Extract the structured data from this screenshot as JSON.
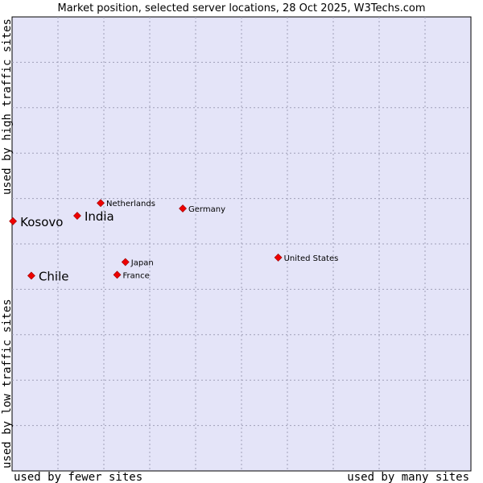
{
  "chart_data": {
    "type": "scatter",
    "title": "Market position, selected server locations, 28 Oct 2025, W3Techs.com",
    "xlabel_left": "used by fewer sites",
    "xlabel_right": "used by many sites",
    "ylabel_bottom": "used by low traffic sites",
    "ylabel_top": "used by high traffic sites",
    "xlim": [
      0,
      100
    ],
    "ylim": [
      0,
      100
    ],
    "grid": true,
    "colors": {
      "plot_background": "#e4e4f8",
      "point": "#ee0000",
      "point_stroke": "#990000",
      "border": "#000000"
    },
    "points": [
      {
        "label": "Kosovo",
        "x": 0.2,
        "y": 55.0,
        "emphasis": true
      },
      {
        "label": "India",
        "x": 14.2,
        "y": 56.2,
        "emphasis": true
      },
      {
        "label": "Chile",
        "x": 4.2,
        "y": 43.0,
        "emphasis": true
      },
      {
        "label": "Netherlands",
        "x": 19.3,
        "y": 59.0,
        "emphasis": false
      },
      {
        "label": "Germany",
        "x": 37.2,
        "y": 57.8,
        "emphasis": false
      },
      {
        "label": "United States",
        "x": 58.0,
        "y": 47.0,
        "emphasis": false
      },
      {
        "label": "Japan",
        "x": 24.7,
        "y": 46.0,
        "emphasis": false
      },
      {
        "label": "France",
        "x": 22.9,
        "y": 43.2,
        "emphasis": false
      }
    ]
  }
}
